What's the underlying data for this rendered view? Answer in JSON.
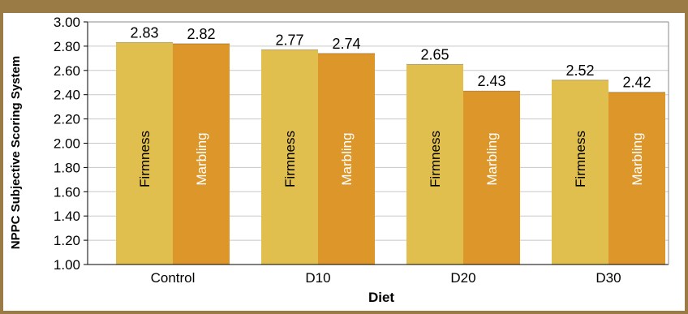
{
  "chart_data": {
    "type": "bar",
    "title": "",
    "xlabel": "Diet",
    "ylabel": "NPPC Subjective Scoring System",
    "categories": [
      "Control",
      "D10",
      "D20",
      "D30"
    ],
    "series": [
      {
        "name": "Firmness",
        "values": [
          2.83,
          2.77,
          2.65,
          2.52
        ]
      },
      {
        "name": "Marbling",
        "values": [
          2.82,
          2.74,
          2.43,
          2.42
        ]
      }
    ],
    "value_labels": [
      [
        "2.83",
        "2.77",
        "2.65",
        "2.52"
      ],
      [
        "2.82",
        "2.74",
        "2.43",
        "2.42"
      ]
    ],
    "ylim": [
      1.0,
      3.0
    ],
    "yticks": [
      "1.00",
      "1.20",
      "1.40",
      "1.60",
      "1.80",
      "2.00",
      "2.20",
      "2.40",
      "2.60",
      "2.80",
      "3.00"
    ],
    "grid": true,
    "legend": "none",
    "colors": {
      "Firmness": "#e0bf4e",
      "Marbling": "#dc9629",
      "grid": "#c8c8c8",
      "frame": "#9a7b45"
    }
  }
}
